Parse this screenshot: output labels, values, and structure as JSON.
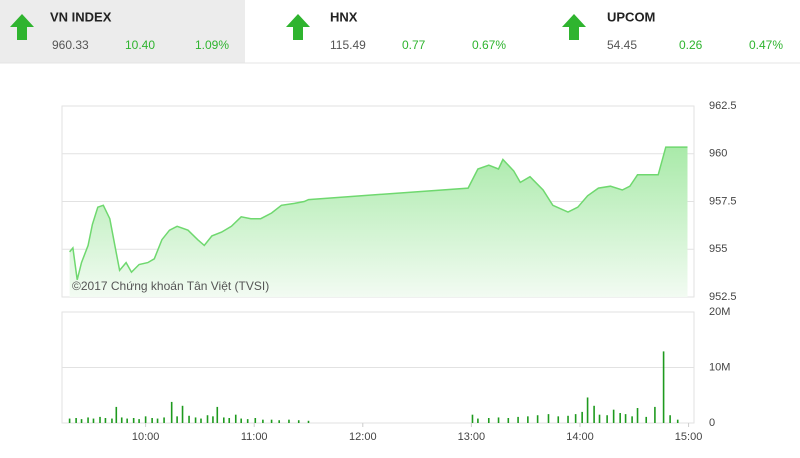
{
  "header": {
    "indices": [
      {
        "name": "VN INDEX",
        "value": "960.33",
        "change": "10.40",
        "percent": "1.09%"
      },
      {
        "name": "HNX",
        "value": "115.49",
        "change": "0.77",
        "percent": "0.67%"
      },
      {
        "name": "UPCOM",
        "value": "54.45",
        "change": "0.26",
        "percent": "0.47%"
      }
    ]
  },
  "chart_data": [
    {
      "type": "area",
      "annotation": "©2017 Chứng khoán Tân Việt (TVSI)",
      "color": "#6fd86f",
      "xlim": [
        9.23,
        15.05
      ],
      "ylim": [
        952.5,
        962.5
      ],
      "yticks": [
        952.5,
        955,
        957.5,
        960,
        962.5
      ],
      "grid": true,
      "x": [
        9.3,
        9.33,
        9.37,
        9.41,
        9.47,
        9.51,
        9.56,
        9.61,
        9.67,
        9.72,
        9.76,
        9.82,
        9.87,
        9.94,
        10.02,
        10.08,
        10.15,
        10.22,
        10.29,
        10.39,
        10.48,
        10.54,
        10.61,
        10.7,
        10.79,
        10.88,
        10.97,
        11.06,
        11.16,
        11.25,
        11.37,
        11.46,
        11.5,
        12.97,
        13.06,
        13.16,
        13.25,
        13.29,
        13.39,
        13.45,
        13.54,
        13.66,
        13.75,
        13.89,
        13.98,
        14.07,
        14.17,
        14.28,
        14.39,
        14.46,
        14.53,
        14.72,
        14.79,
        14.99
      ],
      "values": [
        954.86,
        955.07,
        953.4,
        954.3,
        955.2,
        956.3,
        957.2,
        957.3,
        956.6,
        955.1,
        953.9,
        954.3,
        953.8,
        954.2,
        954.3,
        954.5,
        955.5,
        956.0,
        956.2,
        956.0,
        955.5,
        955.2,
        955.7,
        955.9,
        956.2,
        956.7,
        956.6,
        956.6,
        956.9,
        957.3,
        957.4,
        957.5,
        957.6,
        958.2,
        959.2,
        959.4,
        959.2,
        959.7,
        959.1,
        958.5,
        958.8,
        958.1,
        957.3,
        956.95,
        957.2,
        957.8,
        958.2,
        958.3,
        958.1,
        958.3,
        958.9,
        958.9,
        960.35,
        960.35
      ]
    },
    {
      "type": "bar",
      "color": "#1e9a1e",
      "xlim": [
        9.23,
        15.05
      ],
      "xticks": [
        {
          "value": 10,
          "label": "10:00"
        },
        {
          "value": 11,
          "label": "11:00"
        },
        {
          "value": 12,
          "label": "12:00"
        },
        {
          "value": 13,
          "label": "13:00"
        },
        {
          "value": 14,
          "label": "14:00"
        },
        {
          "value": 15,
          "label": "15:00"
        }
      ],
      "ylim": [
        0,
        20000000
      ],
      "yticks": [
        0,
        {
          "value": 10000000,
          "label": "10M"
        },
        {
          "value": 20000000,
          "label": "20M"
        }
      ],
      "grid": true,
      "x": [
        9.3,
        9.36,
        9.41,
        9.47,
        9.52,
        9.58,
        9.63,
        9.69,
        9.73,
        9.78,
        9.83,
        9.89,
        9.94,
        10.0,
        10.06,
        10.11,
        10.17,
        10.24,
        10.29,
        10.34,
        10.4,
        10.46,
        10.51,
        10.57,
        10.62,
        10.66,
        10.72,
        10.77,
        10.83,
        10.88,
        10.94,
        11.01,
        11.08,
        11.16,
        11.23,
        11.32,
        11.41,
        11.5,
        13.01,
        13.06,
        13.16,
        13.25,
        13.34,
        13.43,
        13.52,
        13.61,
        13.71,
        13.8,
        13.89,
        13.96,
        14.02,
        14.07,
        14.13,
        14.18,
        14.25,
        14.31,
        14.37,
        14.42,
        14.48,
        14.53,
        14.61,
        14.69,
        14.77,
        14.83,
        14.9
      ],
      "values": [
        800000,
        900000,
        700000,
        1000000,
        800000,
        1100000,
        900000,
        800000,
        2900000,
        1000000,
        800000,
        900000,
        700000,
        1200000,
        900000,
        800000,
        1000000,
        3800000,
        1200000,
        3100000,
        1300000,
        1000000,
        800000,
        1400000,
        1200000,
        2900000,
        1000000,
        900000,
        1500000,
        800000,
        700000,
        900000,
        600000,
        600000,
        500000,
        600000,
        500000,
        400000,
        1500000,
        800000,
        900000,
        1000000,
        900000,
        1100000,
        1200000,
        1400000,
        1600000,
        1200000,
        1300000,
        1600000,
        2000000,
        4600000,
        3100000,
        1500000,
        1400000,
        2400000,
        1800000,
        1600000,
        1200000,
        2700000,
        1100000,
        2900000,
        12900000,
        1400000,
        600000
      ]
    }
  ]
}
